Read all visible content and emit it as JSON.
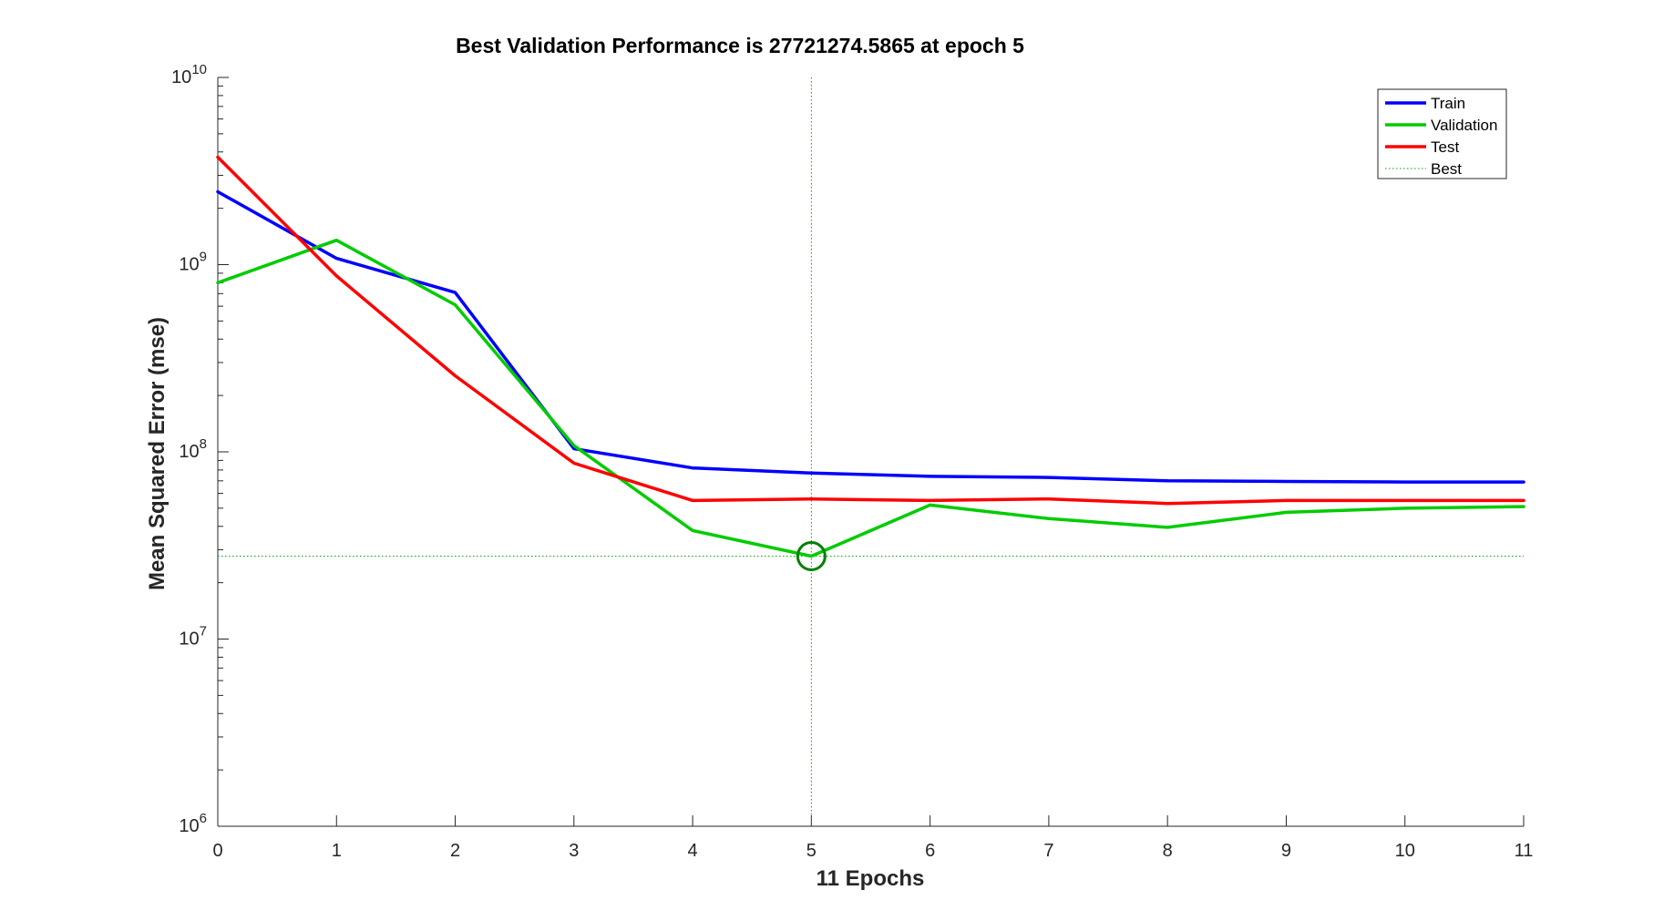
{
  "chart_data": {
    "type": "line",
    "title": "Best Validation Performance is 27721274.5865 at epoch 5",
    "xlabel": "11 Epochs",
    "ylabel": "Mean Squared Error  (mse)",
    "xlim": [
      0,
      11
    ],
    "ylim": [
      1000000,
      10000000000
    ],
    "yscale": "log",
    "x_ticks": [
      "0",
      "1",
      "2",
      "3",
      "4",
      "5",
      "6",
      "7",
      "8",
      "9",
      "10",
      "11"
    ],
    "y_ticks": [
      {
        "base": "10",
        "exp": "6"
      },
      {
        "base": "10",
        "exp": "7"
      },
      {
        "base": "10",
        "exp": "8"
      },
      {
        "base": "10",
        "exp": "9"
      },
      {
        "base": "10",
        "exp": "10"
      }
    ],
    "x": [
      0,
      1,
      2,
      3,
      4,
      5,
      6,
      7,
      8,
      9,
      10,
      11
    ],
    "series": [
      {
        "name": "Train",
        "color": "#0000ff",
        "values": [
          2450000000,
          1080000000,
          710000000,
          104000000,
          82000000,
          77000000,
          74000000,
          73000000,
          70000000,
          69500000,
          69000000,
          69000000
        ]
      },
      {
        "name": "Validation",
        "color": "#00cc00",
        "values": [
          800000000,
          1350000000,
          610000000,
          108000000,
          38000000,
          27721274.5865,
          52000000,
          44000000,
          39500000,
          47500000,
          50000000,
          51000000
        ]
      },
      {
        "name": "Test",
        "color": "#ff0000",
        "values": [
          3750000000,
          870000000,
          255000000,
          87000000,
          55000000,
          56000000,
          55000000,
          56000000,
          53000000,
          55000000,
          55000000,
          55000000
        ]
      }
    ],
    "best": {
      "name": "Best",
      "epoch": 5,
      "value": 27721274.5865,
      "color": "#00aa00",
      "marker_color": "#008000"
    },
    "legend": {
      "position": "top-right",
      "entries": [
        "Train",
        "Validation",
        "Test",
        "Best"
      ]
    },
    "grid": false
  }
}
